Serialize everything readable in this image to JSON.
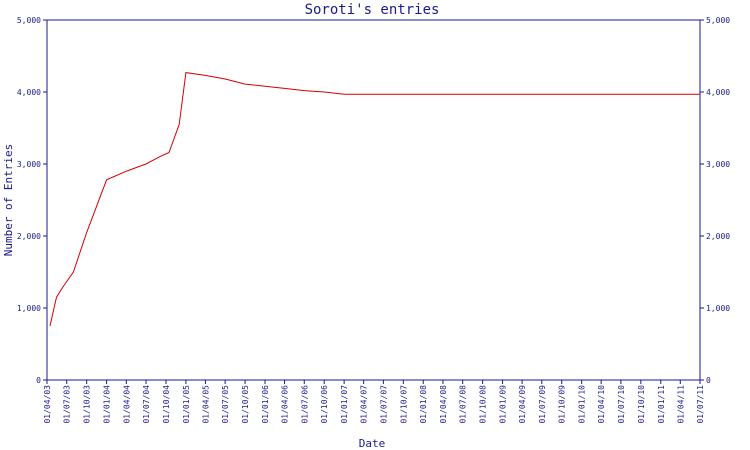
{
  "chart_data": {
    "type": "line",
    "title": "Soroti's entries",
    "xlabel": "Date",
    "ylabel": "Number of Entries",
    "ylim": [
      0,
      5000
    ],
    "y_ticks": [
      0,
      1000,
      2000,
      3000,
      4000,
      5000
    ],
    "y_tick_labels": [
      "0",
      "1,000",
      "2,000",
      "3,000",
      "4,000",
      "5,000"
    ],
    "x_tick_labels": [
      "01/04/03",
      "01/07/03",
      "01/10/03",
      "01/01/04",
      "01/04/04",
      "01/07/04",
      "01/10/04",
      "01/01/05",
      "01/04/05",
      "01/07/05",
      "01/10/05",
      "01/01/06",
      "01/04/06",
      "01/07/06",
      "01/10/06",
      "01/01/07",
      "01/04/07",
      "01/07/07",
      "01/10/07",
      "01/01/08",
      "01/04/08",
      "01/07/08",
      "01/10/08",
      "01/01/09",
      "01/04/09",
      "01/07/09",
      "01/10/09",
      "01/01/10",
      "01/04/10",
      "01/07/10",
      "01/10/10",
      "01/01/11",
      "01/04/11",
      "01/07/11"
    ],
    "grid": false,
    "colors": {
      "series": "#d40000",
      "axis": "#1a1a8c"
    },
    "series": [
      {
        "x": [
          "2003-04-15",
          "2003-05-15",
          "2003-06-15",
          "2003-08-01",
          "2003-10-01",
          "2004-01-01",
          "2004-04-01",
          "2004-07-01",
          "2004-09-01",
          "2004-10-15",
          "2004-12-01",
          "2005-01-01",
          "2005-04-01",
          "2005-07-01",
          "2005-10-01",
          "2006-01-01",
          "2006-04-01",
          "2006-07-01",
          "2006-10-01",
          "2007-01-01",
          "2008-01-01",
          "2009-01-01",
          "2010-01-01",
          "2011-01-01",
          "2011-07-01"
        ],
        "y": [
          750,
          1150,
          1300,
          1500,
          2050,
          2780,
          2900,
          3000,
          3100,
          3160,
          3550,
          4270,
          4230,
          4180,
          4110,
          4080,
          4050,
          4020,
          4000,
          3970,
          3970,
          3970,
          3970,
          3970,
          3970
        ]
      }
    ]
  }
}
